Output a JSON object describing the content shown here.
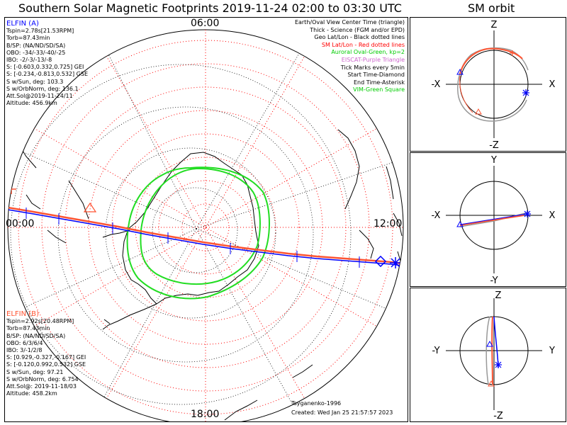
{
  "header": {
    "title": "Southern Solar Magnetic Footprints 2019-11-24 02:00 to 03:30 UTC",
    "orbit_title": "SM orbit"
  },
  "map": {
    "hour_labels": {
      "top": "06:00",
      "left": "00:00",
      "right": "12:00",
      "bottom": "18:00"
    },
    "legend": [
      {
        "text": "Earth/Oval View Center Time (triangle)",
        "color": "#000000"
      },
      {
        "text": "Thick - Science (FGM and/or EPD)",
        "color": "#000000"
      },
      {
        "text": "Geo Lat/Lon - Black dotted lines",
        "color": "#000000"
      },
      {
        "text": "SM Lat/Lon - Red dotted lines",
        "color": "#ff0000"
      },
      {
        "text": "Auroral Oval-Green, kp=2",
        "color": "#00cc00"
      },
      {
        "text": "EISCAT-Purple Triangle",
        "color": "#cc66cc"
      },
      {
        "text": "Tick Marks every 5min",
        "color": "#000000"
      },
      {
        "text": "Start Time-Diamond",
        "color": "#000000"
      },
      {
        "text": "End Time-Asterisk",
        "color": "#000000"
      },
      {
        "text": "VIM-Green Square",
        "color": "#00cc00"
      }
    ],
    "probe_a": {
      "name": "ELFIN (A)",
      "color": "#0000ff",
      "lines": [
        "Tspin=2.78s[21.53RPM]",
        "Torb=87.43min",
        "B/SP: (NA/ND/SD/SA)",
        "OBO: -34/-33/-40/-25",
        "IBO: -2/-3/-13/-8",
        "S: [-0.603,0.332,0.725] GEI",
        "S: [-0.234,-0.813,0.532] GSE",
        "S w/Sun, deg: 103.3",
        "S w/OrbNorm, deg: 136.1",
        "Att.Sol@2019-11-24/11",
        "Altitude: 456.9km"
      ]
    },
    "probe_b": {
      "name": "ELFIN (B)",
      "color": "#ff5533",
      "lines": [
        "Tspin=2.92s[20.48RPM]",
        "Torb=87.43min",
        "B/SP: (NA/ND/SD/SA)",
        "OBO: 6/3/6/4",
        "IBO: 3/-1/2/8",
        "S: [0.929,-0.327,-0.167] GEI",
        "S: [-0.120,0.992,0.532] GSE",
        "S w/Sun, deg: 97.21",
        "S w/OrbNorm, deg: 6.754",
        "Att.Sol@: 2019-11-18/03",
        "Altitude: 458.2km"
      ]
    },
    "credit": [
      "Tsyganenko-1996",
      "Created: Wed Jan 25 21:57:57 2023"
    ]
  },
  "orbit_panels": [
    {
      "top": "Z",
      "bottom": "-Z",
      "left": "-X",
      "right": "X"
    },
    {
      "top": "Y",
      "bottom": "-Y",
      "left": "-X",
      "right": "X"
    },
    {
      "top": "Z",
      "bottom": "-Z",
      "left": "-Y",
      "right": "Y"
    }
  ],
  "colors": {
    "probe_a": "#0000ff",
    "probe_b": "#ff5533",
    "sm_grid": "#ff0000",
    "geo_grid": "#000000",
    "oval": "#22dd22"
  }
}
